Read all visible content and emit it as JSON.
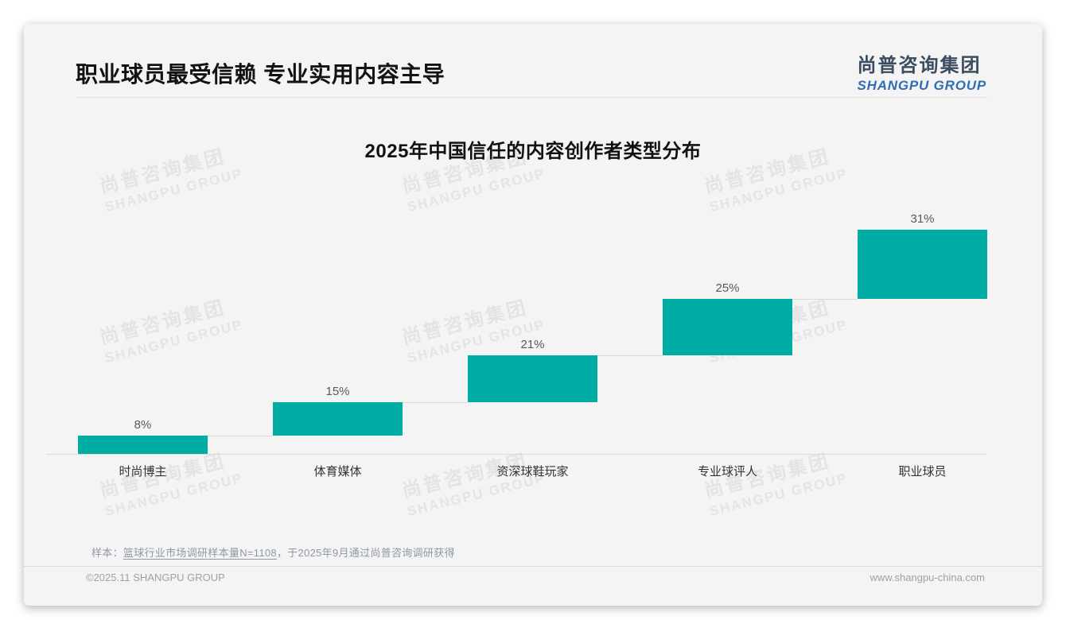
{
  "page": {
    "header": {
      "title": "职业球员最受信赖 专业实用内容主导",
      "logo": {
        "cn": "尚普咨询集团",
        "en": "SHANGPU GROUP"
      }
    },
    "watermark": {
      "cn": "尚普咨询集团",
      "en": "SHANGPU GROUP"
    },
    "footnote": {
      "prefix": "样本：",
      "underlined": "篮球行业市场调研样本量N=1108",
      "suffix": "，于2025年9月通过尚普咨询调研获得"
    },
    "footer": {
      "left": "©2025.11 SHANGPU GROUP",
      "right": "www.shangpu-china.com"
    }
  },
  "chart_data": {
    "type": "bar",
    "subtype": "waterfall-cascade",
    "title": "2025年中国信任的内容创作者类型分布",
    "categories": [
      "时尚博主",
      "体育媒体",
      "资深球鞋玩家",
      "专业球评人",
      "职业球员"
    ],
    "values": [
      8,
      15,
      21,
      25,
      31
    ],
    "value_labels": [
      "8%",
      "15%",
      "21%",
      "25%",
      "31%"
    ],
    "unit": "%",
    "ylim": [
      0,
      100
    ],
    "bar_color": "#00ada5",
    "axis_line_color": "#d9d9d9",
    "value_label_color": "#595959",
    "category_label_color": "#333333",
    "grid": false,
    "legend": false
  }
}
